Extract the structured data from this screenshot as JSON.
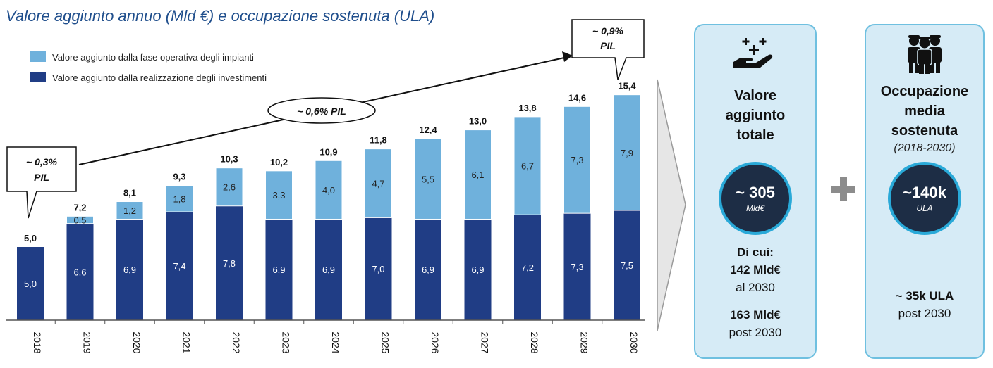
{
  "title": "Valore aggiunto annuo (Mld €) e occupazione sostenuta (ULA)",
  "colors": {
    "dark_blue": "#203d85",
    "light_blue": "#6fb1dc",
    "title_blue": "#1f4e8c",
    "panel_bg": "#d6ebf6",
    "panel_border": "#6fc0e0",
    "circle_bg": "#1d2d45",
    "circle_border": "#29a9d8"
  },
  "callouts": {
    "start_line1": "~ 0,3%",
    "start_line2": "PIL",
    "middle": "~ 0,6% PIL",
    "end_line1": "~ 0,9%",
    "end_line2": "PIL"
  },
  "chart_data": {
    "type": "bar",
    "stacked": true,
    "categories": [
      "2018",
      "2019",
      "2020",
      "2021",
      "2022",
      "2023",
      "2024",
      "2025",
      "2026",
      "2027",
      "2028",
      "2029",
      "2030"
    ],
    "series": [
      {
        "name": "Valore aggiunto dalla realizzazione degli investimenti",
        "color": "#203d85",
        "values": [
          5.0,
          6.6,
          6.9,
          7.4,
          7.8,
          6.9,
          6.9,
          7.0,
          6.9,
          6.9,
          7.2,
          7.3,
          7.5
        ],
        "labels": [
          "5,0",
          "6,6",
          "6,9",
          "7,4",
          "7,8",
          "6,9",
          "6,9",
          "7,0",
          "6,9",
          "6,9",
          "7,2",
          "7,3",
          "7,5"
        ]
      },
      {
        "name": "Valore aggiunto dalla fase operativa degli impianti",
        "color": "#6fb1dc",
        "values": [
          0,
          0.5,
          1.2,
          1.8,
          2.6,
          3.3,
          4.0,
          4.7,
          5.5,
          6.1,
          6.7,
          7.3,
          7.9
        ],
        "labels": [
          "",
          "0,5",
          "1,2",
          "1,8",
          "2,6",
          "3,3",
          "4,0",
          "4,7",
          "5,5",
          "6,1",
          "6,7",
          "7,3",
          "7,9"
        ]
      }
    ],
    "totals": [
      5.0,
      7.2,
      8.1,
      9.3,
      10.3,
      10.2,
      10.9,
      11.8,
      12.4,
      13.0,
      13.8,
      14.6,
      15.4
    ],
    "total_labels": [
      "5,0",
      "7,2",
      "8,1",
      "9,3",
      "10,3",
      "10,2",
      "10,9",
      "11,8",
      "12,4",
      "13,0",
      "13,8",
      "14,6",
      "15,4"
    ],
    "legend_position": "top-left",
    "grid": false
  },
  "panel_value": {
    "title_lines": [
      "Valore",
      "aggiunto",
      "totale"
    ],
    "circle_value": "~ 305",
    "circle_unit": "Mld€",
    "detail_heading": "Di cui:",
    "detail_amount1": "142 Mld€",
    "detail_period1": "al 2030",
    "detail_amount2": "163 Mld€",
    "detail_period2": "post 2030",
    "icon": "hand-plus-icon"
  },
  "panel_jobs": {
    "title_lines": [
      "Occupazione",
      "media",
      "sostenuta"
    ],
    "subtitle": "(2018-2030)",
    "circle_value": "~140k",
    "circle_unit": "ULA",
    "detail_amount": "~ 35k ULA",
    "detail_period": "post 2030",
    "icon": "workers-icon"
  }
}
